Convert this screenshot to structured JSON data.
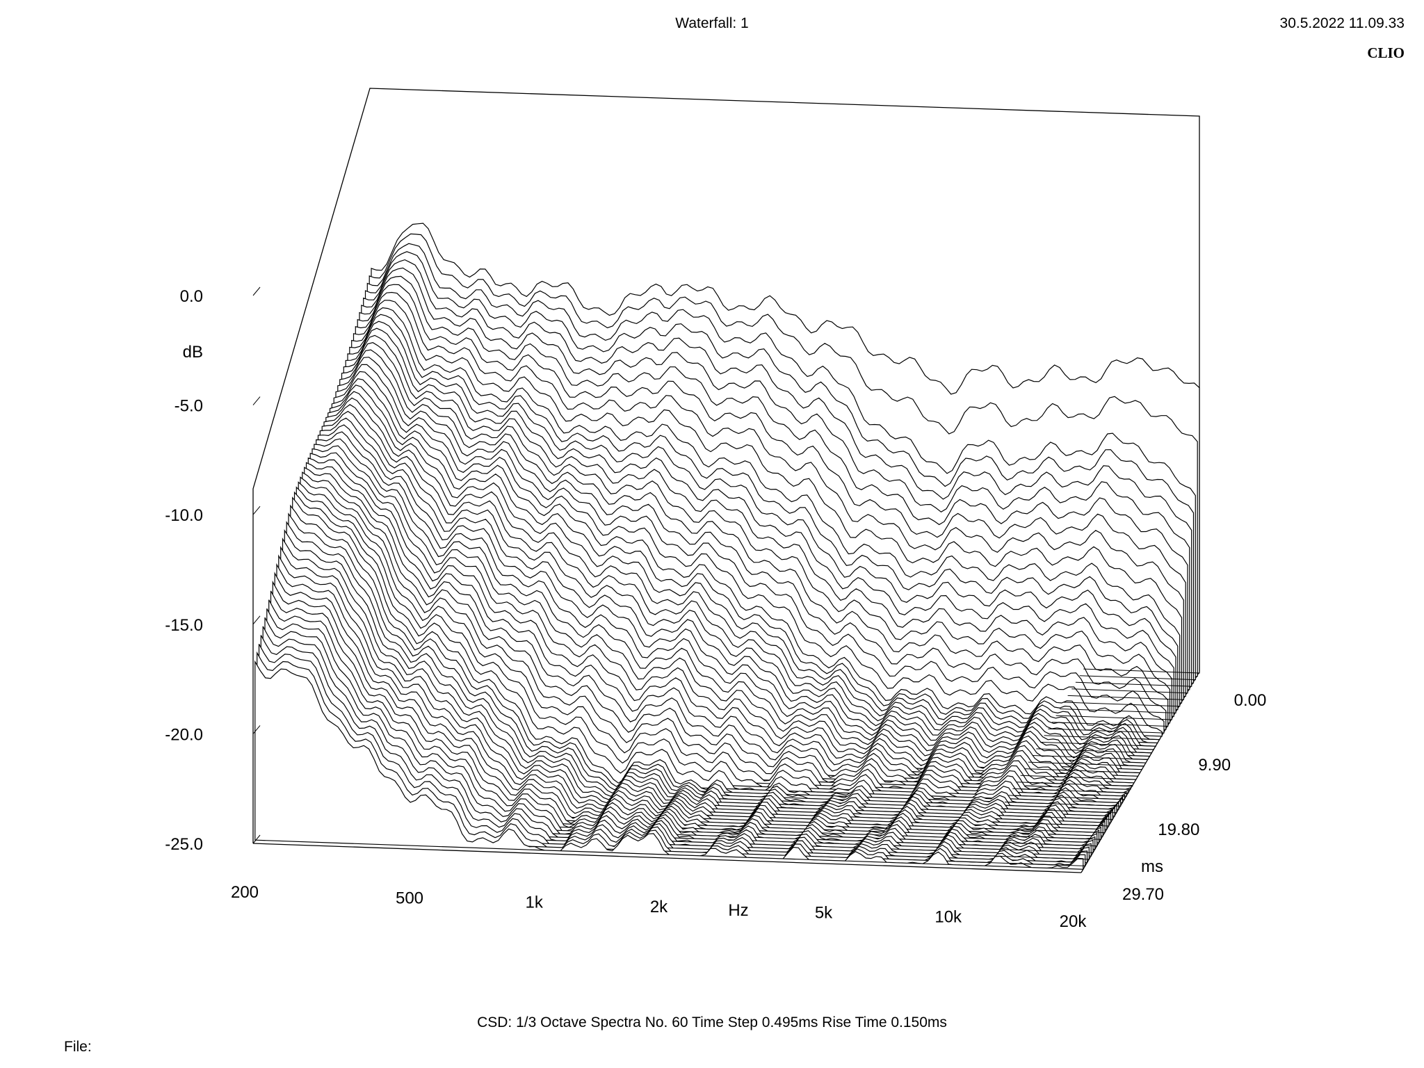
{
  "header": {
    "title": "Waterfall: 1",
    "datetime": "30.5.2022 11.09.33",
    "brand": "CLIO"
  },
  "footer": {
    "settings": "CSD:   1/3 Octave   Spectra No. 60   Time Step 0.495ms   Rise Time 0.150ms",
    "file_label": "File:"
  },
  "chart_data": {
    "type": "waterfall",
    "title": "Waterfall: 1",
    "subtitle": "CSD:   1/3 Octave   Spectra No. 60   Time Step 0.495ms   Rise Time 0.150ms",
    "x_axis": {
      "label": "Hz",
      "scale": "log",
      "range": [
        200,
        20000
      ],
      "ticks": [
        200,
        500,
        1000,
        2000,
        5000,
        10000,
        20000
      ],
      "tick_labels": [
        "200",
        "500",
        "1k",
        "2k",
        "5k",
        "10k",
        "20k"
      ]
    },
    "y_axis": {
      "label": "dB",
      "range": [
        -25,
        0
      ],
      "ticks": [
        0,
        -5,
        -10,
        -15,
        -20,
        -25
      ],
      "tick_labels": [
        "0.0",
        "-5.0",
        "-10.0",
        "-15.0",
        "-20.0",
        "-25.0"
      ]
    },
    "z_axis": {
      "label": "ms",
      "range": [
        0,
        29.7
      ],
      "ticks": [
        0,
        9.9,
        19.8,
        29.7
      ],
      "tick_labels": [
        "0.00",
        "9.90",
        "19.80",
        "29.70"
      ]
    },
    "time_step_ms": 0.495,
    "spectra_count": 60,
    "smoothing": "1/3 Octave",
    "rise_time_ms": 0.15,
    "series": [
      {
        "time_ms": 0.0,
        "freq_hz": [
          200,
          250,
          300,
          400,
          500,
          630,
          800,
          1000,
          1250,
          1600,
          2000,
          2500,
          3150,
          4000,
          5000,
          6300,
          8000,
          10000,
          12500,
          16000,
          20000
        ],
        "db": [
          3.0,
          6.5,
          4.5,
          2.0,
          2.5,
          1.5,
          0.5,
          3.0,
          2.0,
          1.5,
          1.0,
          0.0,
          -1.0,
          -3.0,
          -4.0,
          -3.0,
          -3.5,
          -3.0,
          -2.5,
          -1.5,
          -4.5
        ]
      },
      {
        "time_ms": 0.99,
        "freq_hz": [
          200,
          250,
          300,
          400,
          500,
          630,
          800,
          1000,
          1250,
          1600,
          2000,
          2500,
          3150,
          4000,
          5000,
          6300,
          8000,
          10000,
          12500,
          16000,
          20000
        ],
        "db": [
          2.5,
          5.5,
          3.0,
          1.0,
          1.5,
          0.0,
          -1.0,
          1.5,
          0.5,
          -0.5,
          -1.5,
          -3.0,
          -5.5,
          -8.5,
          -9.5,
          -8.0,
          -9.0,
          -8.0,
          -7.5,
          -8.0,
          -12.0
        ]
      },
      {
        "time_ms": 4.95,
        "freq_hz": [
          200,
          250,
          300,
          400,
          500,
          630,
          800,
          1000,
          1250,
          1600,
          2000,
          2500,
          3150,
          4000,
          5000,
          6300,
          8000,
          10000,
          12500,
          16000,
          20000
        ],
        "db": [
          0.5,
          2.5,
          -1.0,
          -3.0,
          -3.5,
          -5.0,
          -6.5,
          -5.5,
          -6.5,
          -8.0,
          -9.0,
          -11.0,
          -13.5,
          -15.0,
          -15.5,
          -15.0,
          -15.5,
          -15.0,
          -15.5,
          -16.5,
          -20.0
        ]
      },
      {
        "time_ms": 9.9,
        "freq_hz": [
          200,
          250,
          300,
          400,
          500,
          630,
          800,
          1000,
          1250,
          1600,
          2000,
          2500,
          3150,
          4000,
          5000,
          6300,
          8000,
          10000,
          12500,
          16000,
          20000
        ],
        "db": [
          -2.0,
          -0.5,
          -4.0,
          -6.5,
          -7.0,
          -9.0,
          -10.5,
          -11.5,
          -13.0,
          -14.0,
          -15.5,
          -18.0,
          -20.0,
          -21.5,
          -22.5,
          -22.5,
          -23.0,
          -22.5,
          -23.0,
          -24.0,
          -25.0
        ]
      },
      {
        "time_ms": 19.8,
        "freq_hz": [
          200,
          250,
          300,
          400,
          500,
          630,
          800,
          1000,
          1250,
          1600,
          2000,
          2500,
          3150,
          4000,
          5000,
          6300,
          8000,
          10000,
          12500,
          16000,
          20000
        ],
        "db": [
          -5.0,
          -5.5,
          -9.0,
          -14.5,
          -15.0,
          -18.5,
          -21.0,
          -22.5,
          -24.0,
          -23.0,
          -25.0,
          -25.0,
          -25.0,
          -25.0,
          -25.0,
          -25.0,
          -25.0,
          -25.0,
          -25.0,
          -25.0,
          -25.0
        ]
      },
      {
        "time_ms": 29.7,
        "freq_hz": [
          200,
          250,
          300,
          400,
          500,
          630,
          800,
          1000,
          1250,
          1600,
          2000,
          2500,
          3150,
          4000,
          5000,
          6300,
          8000,
          10000,
          12500,
          16000,
          20000
        ],
        "db": [
          -12.0,
          -13.0,
          -15.5,
          -20.0,
          -21.5,
          -24.0,
          -24.5,
          -25.0,
          -25.0,
          -23.5,
          -25.0,
          -25.0,
          -25.0,
          -25.0,
          -25.0,
          -25.0,
          -25.0,
          -25.0,
          -25.0,
          -25.0,
          -25.0
        ]
      }
    ],
    "grid": false,
    "legend": "none"
  }
}
